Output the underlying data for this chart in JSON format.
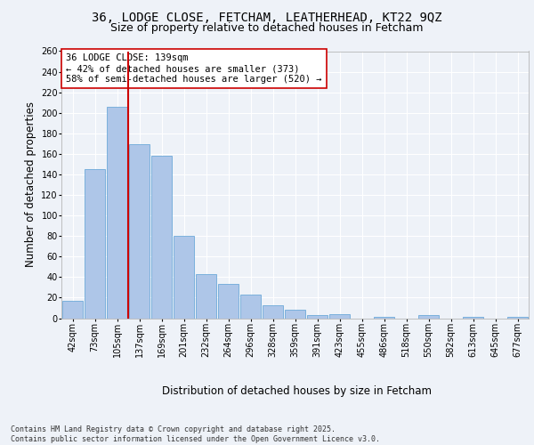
{
  "title1": "36, LODGE CLOSE, FETCHAM, LEATHERHEAD, KT22 9QZ",
  "title2": "Size of property relative to detached houses in Fetcham",
  "xlabel": "Distribution of detached houses by size in Fetcham",
  "ylabel": "Number of detached properties",
  "categories": [
    "42sqm",
    "73sqm",
    "105sqm",
    "137sqm",
    "169sqm",
    "201sqm",
    "232sqm",
    "264sqm",
    "296sqm",
    "328sqm",
    "359sqm",
    "391sqm",
    "423sqm",
    "455sqm",
    "486sqm",
    "518sqm",
    "550sqm",
    "582sqm",
    "613sqm",
    "645sqm",
    "677sqm"
  ],
  "values": [
    17,
    145,
    206,
    169,
    158,
    80,
    43,
    33,
    23,
    13,
    8,
    3,
    4,
    0,
    1,
    0,
    3,
    0,
    1,
    0,
    1
  ],
  "bar_color": "#aec6e8",
  "bar_edge_color": "#5a9fd4",
  "vline_color": "#cc0000",
  "annotation_text": "36 LODGE CLOSE: 139sqm\n← 42% of detached houses are smaller (373)\n58% of semi-detached houses are larger (520) →",
  "annotation_box_color": "#ffffff",
  "annotation_box_edge_color": "#cc0000",
  "ylim": [
    0,
    260
  ],
  "yticks": [
    0,
    20,
    40,
    60,
    80,
    100,
    120,
    140,
    160,
    180,
    200,
    220,
    240,
    260
  ],
  "background_color": "#eef2f8",
  "grid_color": "#ffffff",
  "footer_text": "Contains HM Land Registry data © Crown copyright and database right 2025.\nContains public sector information licensed under the Open Government Licence v3.0.",
  "title_fontsize": 10,
  "subtitle_fontsize": 9,
  "axis_label_fontsize": 8.5,
  "tick_fontsize": 7,
  "annotation_fontsize": 7.5,
  "footer_fontsize": 6
}
